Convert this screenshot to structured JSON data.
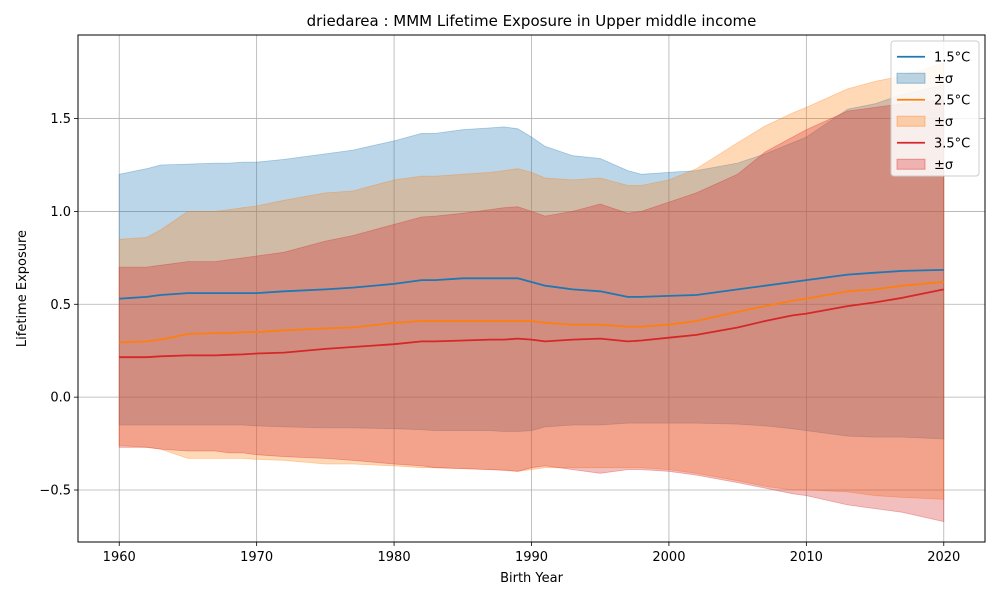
{
  "chart_data": {
    "type": "line",
    "title": "driedarea : MMM Lifetime Exposure in Upper middle income",
    "xlabel": "Birth Year",
    "ylabel": "Lifetime Exposure",
    "xlim": [
      1957,
      2023
    ],
    "ylim": [
      -0.78,
      1.95
    ],
    "xticks": [
      1960,
      1970,
      1980,
      1990,
      2000,
      2010,
      2020
    ],
    "yticks": [
      -0.5,
      0.0,
      0.5,
      1.0,
      1.5
    ],
    "ytick_labels": [
      "−0.5",
      "0.0",
      "0.5",
      "1.0",
      "1.5"
    ],
    "grid": true,
    "legend_position": "top-right",
    "x": [
      1960,
      1962,
      1963,
      1965,
      1967,
      1968,
      1969,
      1970,
      1972,
      1975,
      1977,
      1980,
      1982,
      1983,
      1985,
      1987,
      1988,
      1989,
      1990,
      1991,
      1993,
      1995,
      1997,
      1998,
      2000,
      2002,
      2005,
      2007,
      2009,
      2010,
      2013,
      2015,
      2017,
      2020
    ],
    "series": [
      {
        "name": "1.5°C",
        "band_label": "±σ",
        "color": "#1f77b4",
        "band_color": "#1f77b4",
        "band_opacity": 0.3,
        "mean": [
          0.53,
          0.54,
          0.55,
          0.56,
          0.56,
          0.56,
          0.56,
          0.56,
          0.57,
          0.58,
          0.59,
          0.61,
          0.63,
          0.63,
          0.64,
          0.64,
          0.64,
          0.64,
          0.62,
          0.6,
          0.58,
          0.57,
          0.54,
          0.54,
          0.545,
          0.55,
          0.58,
          0.6,
          0.62,
          0.63,
          0.66,
          0.67,
          0.68,
          0.685
        ],
        "upper": [
          1.2,
          1.23,
          1.25,
          1.255,
          1.26,
          1.26,
          1.265,
          1.265,
          1.28,
          1.31,
          1.33,
          1.38,
          1.42,
          1.42,
          1.44,
          1.45,
          1.455,
          1.445,
          1.4,
          1.35,
          1.3,
          1.285,
          1.22,
          1.2,
          1.21,
          1.22,
          1.26,
          1.31,
          1.37,
          1.4,
          1.55,
          1.58,
          1.63,
          1.68
        ],
        "lower": [
          -0.15,
          -0.15,
          -0.15,
          -0.15,
          -0.15,
          -0.15,
          -0.15,
          -0.155,
          -0.16,
          -0.165,
          -0.165,
          -0.17,
          -0.175,
          -0.18,
          -0.18,
          -0.18,
          -0.185,
          -0.185,
          -0.18,
          -0.16,
          -0.15,
          -0.15,
          -0.14,
          -0.14,
          -0.14,
          -0.14,
          -0.145,
          -0.155,
          -0.17,
          -0.18,
          -0.21,
          -0.215,
          -0.215,
          -0.225
        ]
      },
      {
        "name": "2.5°C",
        "band_label": "±σ",
        "color": "#ff7f0e",
        "band_color": "#ff7f0e",
        "band_opacity": 0.3,
        "mean": [
          0.295,
          0.3,
          0.31,
          0.34,
          0.345,
          0.345,
          0.35,
          0.35,
          0.36,
          0.37,
          0.375,
          0.4,
          0.41,
          0.41,
          0.41,
          0.41,
          0.41,
          0.41,
          0.41,
          0.4,
          0.39,
          0.39,
          0.38,
          0.38,
          0.39,
          0.41,
          0.46,
          0.49,
          0.52,
          0.53,
          0.57,
          0.58,
          0.6,
          0.62
        ],
        "upper": [
          0.85,
          0.86,
          0.9,
          1.0,
          1.0,
          1.01,
          1.02,
          1.03,
          1.06,
          1.1,
          1.11,
          1.17,
          1.19,
          1.19,
          1.2,
          1.21,
          1.22,
          1.23,
          1.21,
          1.18,
          1.17,
          1.18,
          1.14,
          1.14,
          1.17,
          1.23,
          1.37,
          1.46,
          1.53,
          1.56,
          1.66,
          1.7,
          1.73,
          1.8
        ],
        "lower": [
          -0.26,
          -0.27,
          -0.28,
          -0.33,
          -0.33,
          -0.33,
          -0.33,
          -0.335,
          -0.34,
          -0.36,
          -0.36,
          -0.37,
          -0.38,
          -0.38,
          -0.385,
          -0.39,
          -0.39,
          -0.4,
          -0.39,
          -0.38,
          -0.38,
          -0.38,
          -0.38,
          -0.38,
          -0.39,
          -0.41,
          -0.45,
          -0.48,
          -0.5,
          -0.5,
          -0.51,
          -0.53,
          -0.54,
          -0.55
        ]
      },
      {
        "name": "3.5°C",
        "band_label": "±σ",
        "color": "#d62728",
        "band_color": "#d62728",
        "band_opacity": 0.3,
        "mean": [
          0.215,
          0.215,
          0.22,
          0.225,
          0.225,
          0.228,
          0.23,
          0.235,
          0.24,
          0.26,
          0.27,
          0.285,
          0.3,
          0.3,
          0.305,
          0.31,
          0.31,
          0.315,
          0.31,
          0.3,
          0.31,
          0.315,
          0.3,
          0.305,
          0.32,
          0.335,
          0.375,
          0.41,
          0.44,
          0.45,
          0.49,
          0.51,
          0.535,
          0.58
        ],
        "upper": [
          0.7,
          0.7,
          0.71,
          0.73,
          0.73,
          0.74,
          0.75,
          0.76,
          0.78,
          0.84,
          0.87,
          0.93,
          0.97,
          0.975,
          0.99,
          1.01,
          1.02,
          1.025,
          1.0,
          0.975,
          1.0,
          1.04,
          0.99,
          1.0,
          1.05,
          1.1,
          1.2,
          1.32,
          1.4,
          1.44,
          1.54,
          1.56,
          1.58,
          1.6
        ],
        "lower": [
          -0.27,
          -0.27,
          -0.28,
          -0.29,
          -0.29,
          -0.3,
          -0.3,
          -0.31,
          -0.32,
          -0.33,
          -0.34,
          -0.36,
          -0.37,
          -0.38,
          -0.385,
          -0.39,
          -0.395,
          -0.4,
          -0.38,
          -0.37,
          -0.39,
          -0.41,
          -0.39,
          -0.39,
          -0.4,
          -0.42,
          -0.46,
          -0.49,
          -0.52,
          -0.53,
          -0.58,
          -0.6,
          -0.62,
          -0.67
        ]
      }
    ]
  }
}
